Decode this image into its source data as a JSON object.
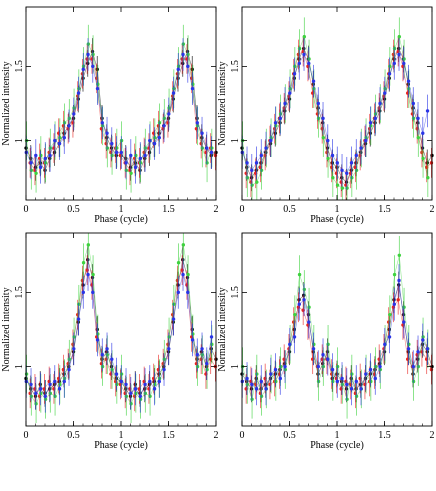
{
  "figure": {
    "panels": 4,
    "layout": "2x2 grid",
    "background": "#ffffff"
  },
  "colors": {
    "black": "#000000",
    "red": "#e8231f",
    "green": "#3ed23e",
    "blue": "#2a34e6"
  },
  "chart_data": [
    {
      "type": "scatter",
      "xlabel": "Phase (cycle)",
      "ylabel": "Normalized intensity",
      "xlim": [
        0,
        2
      ],
      "ylim": [
        0.6,
        1.9
      ],
      "xticks": [
        0,
        0.5,
        1,
        1.5,
        2
      ],
      "xtick_labels": [
        "0",
        "0.5",
        "1",
        "1.5",
        "2"
      ],
      "yticks": [
        1,
        1.5
      ],
      "ytick_labels": [
        "1",
        "1.5"
      ],
      "error_bars": true,
      "x": [
        0.0,
        0.05,
        0.1,
        0.15,
        0.2,
        0.25,
        0.3,
        0.35,
        0.4,
        0.45,
        0.5,
        0.55,
        0.6,
        0.65,
        0.7,
        0.75,
        0.8,
        0.85,
        0.9,
        0.95,
        1.0,
        1.05,
        1.1,
        1.15,
        1.2,
        1.25,
        1.3,
        1.35,
        1.4,
        1.45,
        1.5,
        1.55,
        1.6,
        1.65,
        1.7,
        1.75,
        1.8,
        1.85,
        1.9,
        1.95,
        2.0
      ],
      "series": [
        {
          "color": "black",
          "values": [
            0.95,
            0.88,
            0.82,
            0.85,
            0.8,
            0.88,
            0.92,
            0.98,
            1.05,
            1.1,
            1.15,
            1.28,
            1.42,
            1.52,
            1.6,
            1.48,
            1.15,
            1.02,
            0.95,
            0.9,
            0.9,
            0.88,
            0.82,
            0.85,
            0.8,
            0.88,
            0.92,
            0.98,
            1.05,
            1.1,
            1.15,
            1.28,
            1.42,
            1.52,
            1.6,
            1.48,
            1.15,
            1.02,
            0.95,
            0.9,
            0.92
          ]
        },
        {
          "color": "red",
          "values": [
            0.9,
            0.85,
            0.8,
            0.88,
            0.85,
            0.92,
            0.95,
            1.05,
            1.1,
            1.08,
            1.12,
            1.3,
            1.45,
            1.55,
            1.55,
            1.42,
            1.08,
            0.98,
            0.92,
            0.95,
            0.9,
            0.85,
            0.8,
            0.88,
            0.85,
            0.92,
            0.95,
            1.05,
            1.1,
            1.08,
            1.12,
            1.3,
            1.45,
            1.55,
            1.55,
            1.42,
            1.08,
            0.98,
            0.92,
            0.95,
            0.9
          ]
        },
        {
          "color": "green",
          "values": [
            1.0,
            0.8,
            0.78,
            0.9,
            0.85,
            0.95,
            1.0,
            1.02,
            1.12,
            1.15,
            1.22,
            1.35,
            1.5,
            1.65,
            1.58,
            1.38,
            1.1,
            0.95,
            0.9,
            0.95,
            1.0,
            0.8,
            0.78,
            0.9,
            0.85,
            0.95,
            1.0,
            1.02,
            1.12,
            1.15,
            1.22,
            1.35,
            1.5,
            1.65,
            1.58,
            1.38,
            1.1,
            0.95,
            0.85,
            0.95,
            1.0
          ]
        },
        {
          "color": "blue",
          "values": [
            0.92,
            0.85,
            0.9,
            0.82,
            0.88,
            0.9,
            1.0,
            0.98,
            1.02,
            1.1,
            1.18,
            1.32,
            1.48,
            1.58,
            1.5,
            1.35,
            1.12,
            1.05,
            0.98,
            0.92,
            0.92,
            0.85,
            0.9,
            0.82,
            0.88,
            0.9,
            1.0,
            0.98,
            1.02,
            1.1,
            1.18,
            1.32,
            1.48,
            1.58,
            1.5,
            1.35,
            1.12,
            1.05,
            0.95,
            0.92,
            0.92
          ]
        }
      ]
    },
    {
      "type": "scatter",
      "xlabel": "Phase (cycle)",
      "ylabel": "Normalized intensity",
      "xlim": [
        0,
        2
      ],
      "ylim": [
        0.6,
        1.9
      ],
      "xticks": [
        0,
        0.5,
        1,
        1.5,
        2
      ],
      "xtick_labels": [
        "0",
        "0.5",
        "1",
        "1.5",
        "2"
      ],
      "yticks": [
        1,
        1.5
      ],
      "ytick_labels": [
        "1",
        "1.5"
      ],
      "error_bars": true,
      "x": [
        0.0,
        0.05,
        0.1,
        0.15,
        0.2,
        0.25,
        0.3,
        0.35,
        0.4,
        0.45,
        0.5,
        0.55,
        0.6,
        0.65,
        0.7,
        0.75,
        0.8,
        0.85,
        0.9,
        0.95,
        1.0,
        1.05,
        1.1,
        1.15,
        1.2,
        1.25,
        1.3,
        1.35,
        1.4,
        1.45,
        1.5,
        1.55,
        1.6,
        1.65,
        1.7,
        1.75,
        1.8,
        1.85,
        1.9,
        1.95,
        2.0
      ],
      "series": [
        {
          "color": "black",
          "values": [
            0.95,
            0.82,
            0.75,
            0.8,
            0.85,
            0.92,
            0.98,
            1.05,
            1.12,
            1.2,
            1.28,
            1.42,
            1.55,
            1.62,
            1.55,
            1.38,
            1.22,
            1.12,
            0.95,
            0.85,
            0.82,
            0.75,
            0.72,
            0.8,
            0.85,
            0.92,
            0.98,
            1.05,
            1.12,
            1.2,
            1.28,
            1.42,
            1.55,
            1.62,
            1.55,
            1.38,
            1.22,
            1.12,
            0.95,
            0.85,
            0.9
          ]
        },
        {
          "color": "red",
          "values": [
            0.9,
            0.78,
            0.72,
            0.78,
            0.82,
            0.9,
            1.0,
            1.08,
            1.15,
            1.22,
            1.3,
            1.45,
            1.58,
            1.6,
            1.5,
            1.32,
            1.18,
            1.08,
            0.92,
            0.82,
            0.78,
            0.72,
            0.7,
            0.78,
            0.82,
            0.9,
            1.0,
            1.08,
            1.15,
            1.22,
            1.3,
            1.45,
            1.58,
            1.6,
            1.5,
            1.32,
            1.18,
            1.08,
            0.92,
            0.82,
            0.85
          ]
        },
        {
          "color": "green",
          "values": [
            1.0,
            0.75,
            0.7,
            0.72,
            0.8,
            0.95,
            1.02,
            1.1,
            1.18,
            1.25,
            1.35,
            1.5,
            1.62,
            1.7,
            1.55,
            1.35,
            1.15,
            1.02,
            0.88,
            0.75,
            0.7,
            0.68,
            0.68,
            0.75,
            0.8,
            0.95,
            1.02,
            1.1,
            1.18,
            1.25,
            1.35,
            1.5,
            1.62,
            1.7,
            1.55,
            1.35,
            1.15,
            1.02,
            0.88,
            0.75,
            1.0
          ]
        },
        {
          "color": "blue",
          "values": [
            0.92,
            0.85,
            0.8,
            0.85,
            0.9,
            0.95,
            1.0,
            1.12,
            1.15,
            1.25,
            1.32,
            1.45,
            1.52,
            1.58,
            1.52,
            1.4,
            1.25,
            1.15,
            1.0,
            0.9,
            0.85,
            0.8,
            0.78,
            0.85,
            0.9,
            0.95,
            1.0,
            1.12,
            1.15,
            1.25,
            1.32,
            1.45,
            1.52,
            1.58,
            1.52,
            1.4,
            1.25,
            1.15,
            1.05,
            1.2,
            1.1
          ]
        }
      ]
    },
    {
      "type": "scatter",
      "xlabel": "Phase (cycle)",
      "ylabel": "Normalized intensity",
      "xlim": [
        0,
        2
      ],
      "ylim": [
        0.6,
        1.9
      ],
      "xticks": [
        0,
        0.5,
        1,
        1.5,
        2
      ],
      "xtick_labels": [
        "0",
        "0.5",
        "1",
        "1.5",
        "2"
      ],
      "yticks": [
        1,
        1.5
      ],
      "ytick_labels": [
        "1",
        "1.5"
      ],
      "error_bars": true,
      "x": [
        0.0,
        0.05,
        0.1,
        0.15,
        0.2,
        0.25,
        0.3,
        0.35,
        0.4,
        0.45,
        0.5,
        0.55,
        0.6,
        0.65,
        0.7,
        0.75,
        0.8,
        0.85,
        0.9,
        0.95,
        1.0,
        1.05,
        1.1,
        1.15,
        1.2,
        1.25,
        1.3,
        1.35,
        1.4,
        1.45,
        1.5,
        1.55,
        1.6,
        1.65,
        1.7,
        1.75,
        1.8,
        1.85,
        1.9,
        1.95,
        2.0
      ],
      "series": [
        {
          "color": "black",
          "values": [
            0.92,
            0.85,
            0.8,
            0.88,
            0.82,
            0.85,
            0.88,
            0.9,
            0.95,
            1.0,
            1.1,
            1.3,
            1.55,
            1.72,
            1.6,
            1.25,
            1.05,
            1.1,
            1.0,
            0.92,
            0.9,
            0.85,
            0.8,
            0.88,
            0.82,
            0.85,
            0.88,
            0.9,
            0.95,
            1.0,
            1.1,
            1.3,
            1.55,
            1.72,
            1.6,
            1.25,
            1.05,
            1.1,
            1.0,
            1.12,
            1.05
          ]
        },
        {
          "color": "red",
          "values": [
            0.88,
            0.82,
            0.85,
            0.8,
            0.85,
            0.9,
            0.85,
            0.92,
            0.98,
            1.02,
            1.15,
            1.35,
            1.58,
            1.65,
            1.55,
            1.2,
            1.02,
            1.05,
            0.95,
            0.9,
            0.88,
            0.82,
            0.85,
            0.8,
            0.85,
            0.9,
            0.85,
            0.92,
            0.98,
            1.02,
            1.15,
            1.35,
            1.58,
            1.65,
            1.55,
            1.2,
            1.02,
            1.05,
            0.95,
            1.05,
            1.0
          ]
        },
        {
          "color": "green",
          "values": [
            0.95,
            0.8,
            0.75,
            0.82,
            0.78,
            0.82,
            0.8,
            0.88,
            0.92,
            1.05,
            1.2,
            1.42,
            1.7,
            1.82,
            1.62,
            1.22,
            1.0,
            1.08,
            0.98,
            0.88,
            0.95,
            0.8,
            0.75,
            0.82,
            0.78,
            0.82,
            0.8,
            0.88,
            0.92,
            1.05,
            1.2,
            1.42,
            1.7,
            1.82,
            1.62,
            1.22,
            1.0,
            1.08,
            0.98,
            1.15,
            1.08
          ]
        },
        {
          "color": "blue",
          "values": [
            0.9,
            0.88,
            0.82,
            0.85,
            0.8,
            0.88,
            0.9,
            0.85,
            0.9,
            0.98,
            1.12,
            1.32,
            1.5,
            1.62,
            1.5,
            1.18,
            1.08,
            1.12,
            1.05,
            0.95,
            0.9,
            0.88,
            0.82,
            0.85,
            0.8,
            0.88,
            0.9,
            0.85,
            0.9,
            0.98,
            1.12,
            1.32,
            1.5,
            1.62,
            1.5,
            1.18,
            1.08,
            1.12,
            1.02,
            1.2,
            1.15
          ]
        }
      ]
    },
    {
      "type": "scatter",
      "xlabel": "Phase (cycle)",
      "ylabel": "Normalized intensity",
      "xlim": [
        0,
        2
      ],
      "ylim": [
        0.6,
        1.9
      ],
      "xticks": [
        0,
        0.5,
        1,
        1.5,
        2
      ],
      "xtick_labels": [
        "0",
        "0.5",
        "1",
        "1.5",
        "2"
      ],
      "yticks": [
        1,
        1.5
      ],
      "ytick_labels": [
        "1",
        "1.5"
      ],
      "error_bars": true,
      "x": [
        0.0,
        0.05,
        0.1,
        0.15,
        0.2,
        0.25,
        0.3,
        0.35,
        0.4,
        0.45,
        0.5,
        0.55,
        0.6,
        0.65,
        0.7,
        0.75,
        0.8,
        0.85,
        0.9,
        0.95,
        1.0,
        1.05,
        1.1,
        1.15,
        1.2,
        1.25,
        1.3,
        1.35,
        1.4,
        1.45,
        1.5,
        1.55,
        1.6,
        1.65,
        1.7,
        1.75,
        1.8,
        1.85,
        1.9,
        1.95,
        2.0
      ],
      "series": [
        {
          "color": "black",
          "values": [
            0.95,
            0.9,
            0.85,
            0.92,
            0.85,
            0.88,
            0.92,
            0.95,
            0.98,
            1.02,
            1.1,
            1.25,
            1.45,
            1.48,
            1.35,
            1.1,
            0.95,
            1.02,
            1.1,
            0.92,
            0.95,
            0.9,
            0.85,
            0.92,
            0.85,
            0.88,
            0.92,
            0.95,
            0.98,
            1.02,
            1.1,
            1.25,
            1.45,
            1.55,
            1.35,
            1.1,
            0.95,
            1.05,
            1.15,
            1.1,
            1.0
          ]
        },
        {
          "color": "red",
          "values": [
            0.92,
            0.85,
            0.9,
            0.88,
            0.82,
            0.92,
            0.88,
            0.9,
            0.95,
            1.05,
            1.12,
            1.3,
            1.4,
            1.38,
            1.28,
            1.05,
            1.0,
            1.05,
            1.05,
            0.95,
            0.92,
            0.85,
            0.9,
            0.88,
            0.82,
            0.92,
            0.88,
            0.9,
            0.95,
            1.05,
            1.12,
            1.3,
            1.4,
            1.45,
            1.28,
            1.05,
            1.0,
            1.08,
            1.1,
            1.05,
            0.98
          ]
        },
        {
          "color": "green",
          "values": [
            1.0,
            0.88,
            0.78,
            0.95,
            0.8,
            0.85,
            0.95,
            0.9,
            1.0,
            0.98,
            1.15,
            1.35,
            1.62,
            1.52,
            1.4,
            1.15,
            0.9,
            1.0,
            1.15,
            0.9,
            1.0,
            0.88,
            0.78,
            0.95,
            0.8,
            0.85,
            0.95,
            0.9,
            1.0,
            0.98,
            1.15,
            1.35,
            1.62,
            1.75,
            1.4,
            1.15,
            0.9,
            1.0,
            1.2,
            1.12,
            1.05
          ]
        },
        {
          "color": "blue",
          "values": [
            0.9,
            0.92,
            0.88,
            0.85,
            0.9,
            0.85,
            0.95,
            0.98,
            0.92,
            1.0,
            1.15,
            1.2,
            1.42,
            1.45,
            1.3,
            1.12,
            1.0,
            1.08,
            1.05,
            0.98,
            0.9,
            0.92,
            0.88,
            0.85,
            0.9,
            0.85,
            0.95,
            0.98,
            0.92,
            1.0,
            1.15,
            1.2,
            1.42,
            1.58,
            1.3,
            1.12,
            1.0,
            1.1,
            1.18,
            1.12,
            1.1
          ]
        }
      ]
    }
  ]
}
